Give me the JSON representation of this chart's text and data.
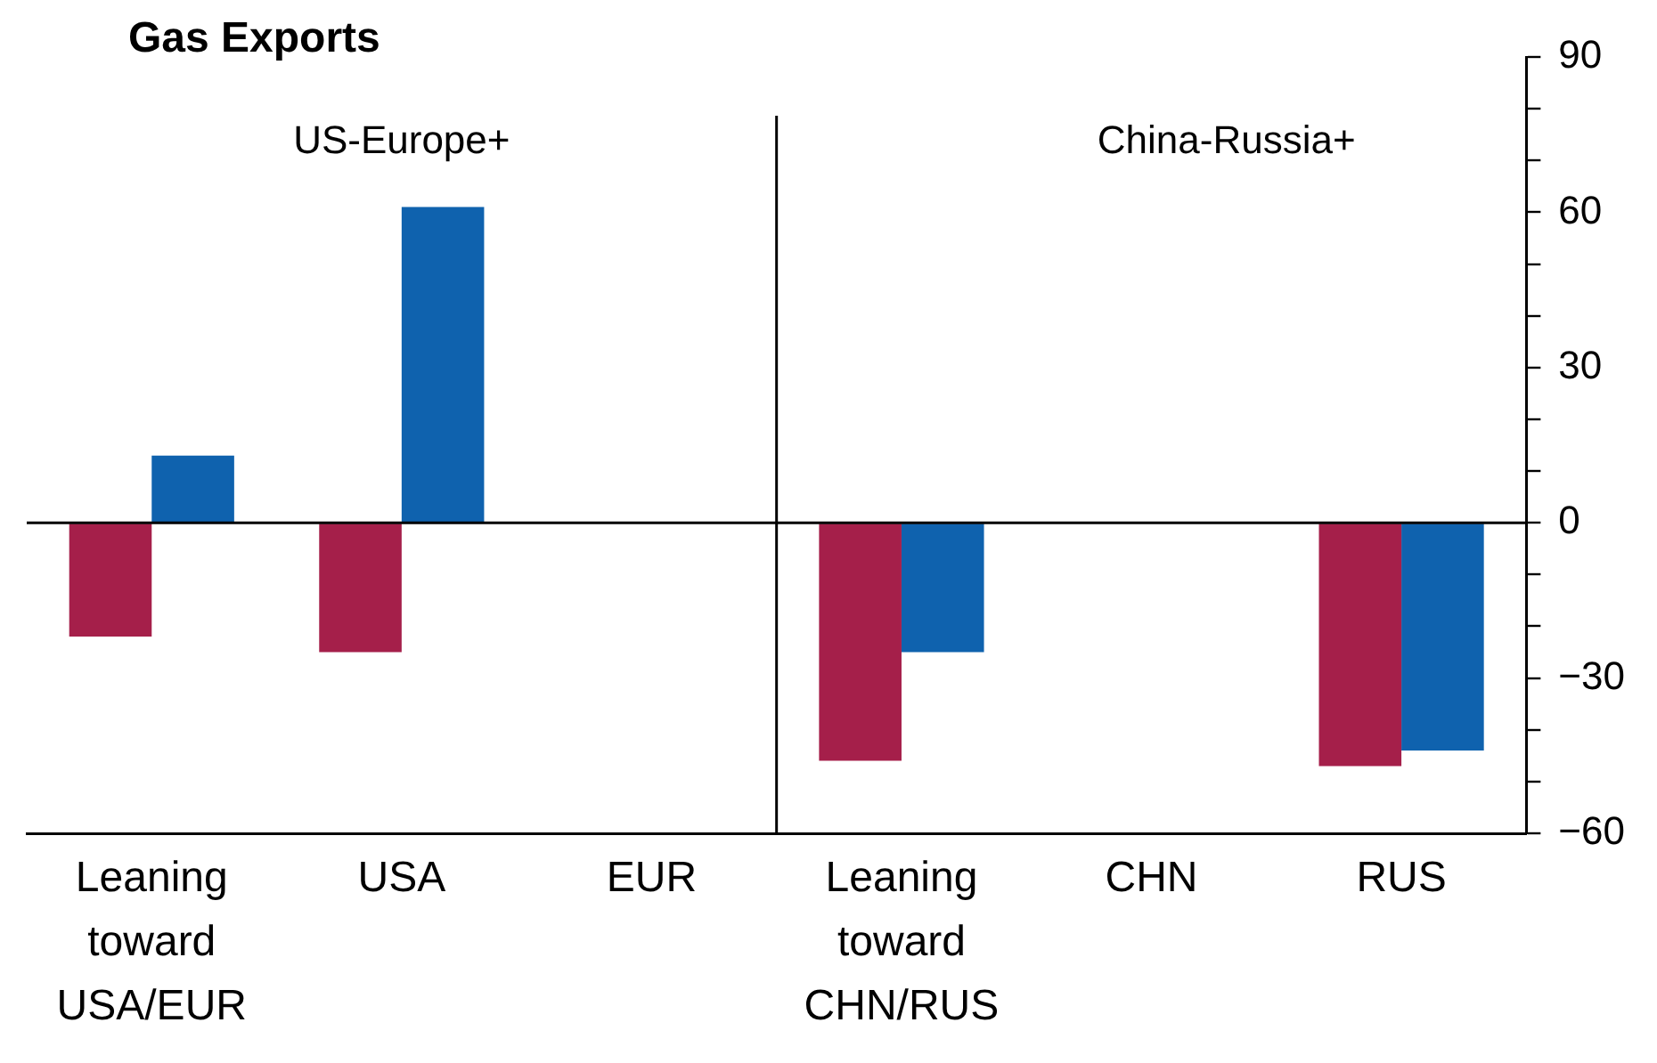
{
  "chart_data": {
    "type": "bar",
    "title": "Gas Exports",
    "categories": [
      "Leaning toward USA/EUR",
      "USA",
      "EUR",
      "Leaning toward CHN/RUS",
      "CHN",
      "RUS"
    ],
    "series": [
      {
        "color": "#a51f4a",
        "values": [
          -22,
          -25,
          null,
          -46,
          null,
          -47
        ]
      },
      {
        "color": "#0f62ae",
        "values": [
          13,
          61,
          null,
          -25,
          null,
          -44
        ]
      }
    ],
    "ylim": [
      -60,
      90
    ],
    "yticks": [
      {
        "value": -60,
        "label": "−60"
      },
      {
        "value": -50,
        "label": null
      },
      {
        "value": -40,
        "label": null
      },
      {
        "value": -30,
        "label": "−30"
      },
      {
        "value": -20,
        "label": null
      },
      {
        "value": -10,
        "label": null
      },
      0,
      {
        "value": 10,
        "label": null
      },
      {
        "value": 20,
        "label": null
      },
      30,
      {
        "value": 40,
        "label": null
      },
      {
        "value": 50,
        "label": null
      },
      60,
      {
        "value": 70,
        "label": null
      },
      {
        "value": 80,
        "label": null
      },
      90
    ],
    "ref_lines": [
      {
        "axis": "y",
        "value": 0,
        "color": "#000000"
      }
    ],
    "annotations": [
      "US-Europe+",
      "China-Russia+"
    ],
    "grid": false,
    "legend": false
  }
}
